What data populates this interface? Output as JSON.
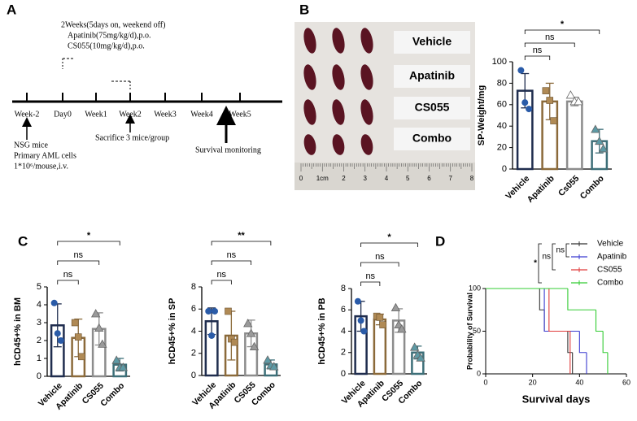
{
  "panels": [
    "A",
    "B",
    "C",
    "D"
  ],
  "timeline": {
    "treatment": [
      "2Weeks(5days on, weekend off)",
      "Apatinib(75mg/kg/d),p.o.",
      "CS055(10mg/kg/d),p.o."
    ],
    "ticks": [
      "Week-2",
      "Day0",
      "Week1",
      "Week2",
      "Week3",
      "Week4",
      "Week5"
    ],
    "injection": [
      "NSG mice",
      "Primary AML cells",
      "1*10⁶/mouse,i.v."
    ],
    "sacrifice": "Sacrifice 3 mice/group",
    "survival": "Survival monitoring"
  },
  "photo": {
    "labels": [
      "Vehicle",
      "Apatinib",
      "CS055",
      "Combo"
    ],
    "ruler": [
      "0",
      "1cm",
      "2",
      "3",
      "4",
      "5",
      "6",
      "7",
      "8"
    ]
  },
  "chart_data": [
    {
      "type": "bar",
      "ylabel": "SP-Weight/mg",
      "categories": [
        "Vehicle",
        "Apatinib",
        "Cs055",
        "Combo"
      ],
      "values": [
        73,
        63,
        63,
        26
      ],
      "errors": [
        16,
        17,
        4,
        11
      ],
      "points": [
        [
          92,
          62,
          56
        ],
        [
          73,
          64,
          45
        ],
        [
          69,
          63,
          63
        ],
        [
          37,
          26,
          19
        ]
      ],
      "colors": [
        "#1f2d4e",
        "#8b6a3a",
        "#8c8c8c",
        "#3d6f78"
      ],
      "point_colors": [
        "#2a5ba8",
        "#b08a55",
        "#9a9a9a",
        "#5d9aa5"
      ],
      "markers": [
        "circle",
        "square",
        "triangle",
        "triangle"
      ],
      "ylim": [
        0,
        100
      ],
      "yticks": [
        0,
        20,
        40,
        60,
        80,
        100
      ],
      "annotations": [
        "ns",
        "ns",
        "*"
      ]
    },
    {
      "type": "bar",
      "ylabel": "hCD45+% in BM",
      "categories": [
        "Vehicle",
        "Apatinib",
        "CS055",
        "Combo"
      ],
      "values": [
        2.85,
        2.15,
        2.65,
        0.65
      ],
      "errors": [
        1.2,
        1.05,
        0.9,
        0.35
      ],
      "points": [
        [
          4.1,
          2.4,
          2.0
        ],
        [
          3.0,
          2.2,
          1.1
        ],
        [
          3.5,
          2.7,
          1.8
        ],
        [
          0.9,
          0.5,
          0.5
        ]
      ],
      "colors": [
        "#1f2d4e",
        "#8b6a3a",
        "#8c8c8c",
        "#3d6f78"
      ],
      "point_colors": [
        "#2a5ba8",
        "#b08a55",
        "#9a9a9a",
        "#5d9aa5"
      ],
      "markers": [
        "circle",
        "square",
        "triangle",
        "triangle"
      ],
      "ylim": [
        0,
        5
      ],
      "yticks": [
        0,
        1,
        2,
        3,
        4,
        5
      ],
      "annotations": [
        "ns",
        "ns",
        "*"
      ]
    },
    {
      "type": "bar",
      "ylabel": "hCD45+% in SP",
      "categories": [
        "Vehicle",
        "Apatinib",
        "CS055",
        "Combo"
      ],
      "values": [
        4.9,
        3.6,
        3.8,
        1.0
      ],
      "errors": [
        1.2,
        2.2,
        1.2,
        0.4
      ],
      "points": [
        [
          5.8,
          3.6,
          5.8
        ],
        [
          5.8,
          3.3,
          3.0
        ],
        [
          4.7,
          3.8,
          2.6
        ],
        [
          1.4,
          0.9,
          0.8
        ]
      ],
      "colors": [
        "#1f2d4e",
        "#8b6a3a",
        "#8c8c8c",
        "#3d6f78"
      ],
      "point_colors": [
        "#2a5ba8",
        "#b08a55",
        "#9a9a9a",
        "#5d9aa5"
      ],
      "markers": [
        "circle",
        "square",
        "triangle",
        "triangle"
      ],
      "ylim": [
        0,
        8
      ],
      "yticks": [
        0,
        2,
        4,
        6,
        8
      ],
      "annotations": [
        "ns",
        "ns",
        "**"
      ]
    },
    {
      "type": "bar",
      "ylabel": "hCD45+% in PB",
      "categories": [
        "Vehicle",
        "Apatinib",
        "CS055",
        "Combo"
      ],
      "values": [
        5.4,
        5.1,
        5.0,
        2.0
      ],
      "errors": [
        1.4,
        0.5,
        1.1,
        0.6
      ],
      "points": [
        [
          6.8,
          5.0,
          4.0
        ],
        [
          5.4,
          5.3,
          4.6
        ],
        [
          6.2,
          4.6,
          4.2
        ],
        [
          2.5,
          1.8,
          1.5
        ]
      ],
      "colors": [
        "#1f2d4e",
        "#8b6a3a",
        "#8c8c8c",
        "#3d6f78"
      ],
      "point_colors": [
        "#2a5ba8",
        "#b08a55",
        "#9a9a9a",
        "#5d9aa5"
      ],
      "markers": [
        "circle",
        "square",
        "triangle",
        "triangle"
      ],
      "ylim": [
        0,
        8
      ],
      "yticks": [
        0,
        2,
        4,
        6,
        8
      ],
      "annotations": [
        "ns",
        "ns",
        "*"
      ]
    },
    {
      "type": "line",
      "step": true,
      "xlabel": "Survival days",
      "ylabel": "Probability of Survival",
      "xlim": [
        0,
        60
      ],
      "xticks": [
        0,
        20,
        40,
        60
      ],
      "ylim": [
        0,
        100
      ],
      "yticks": [
        0,
        50,
        100
      ],
      "series": [
        {
          "name": "Vehicle",
          "color": "#333333",
          "x": [
            0,
            23,
            25,
            35,
            37
          ],
          "values": [
            100,
            75,
            50,
            25,
            0
          ]
        },
        {
          "name": "Apatinib",
          "color": "#3b3bd0",
          "x": [
            0,
            25,
            40,
            43
          ],
          "values": [
            100,
            50,
            25,
            0
          ]
        },
        {
          "name": "CS055",
          "color": "#e03a3a",
          "x": [
            0,
            27,
            36
          ],
          "values": [
            100,
            50,
            0
          ]
        },
        {
          "name": "Combo",
          "color": "#33cc33",
          "x": [
            0,
            35,
            47,
            50,
            52
          ],
          "values": [
            100,
            75,
            50,
            25,
            0
          ]
        }
      ],
      "annotations": [
        "ns",
        "ns",
        "*"
      ]
    }
  ]
}
